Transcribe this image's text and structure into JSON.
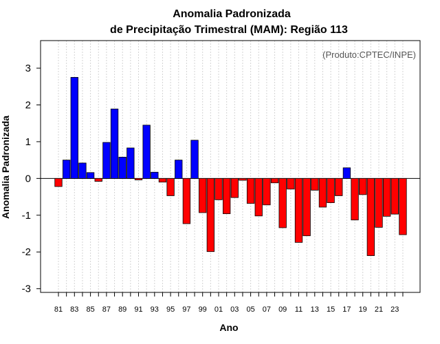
{
  "chart_data": {
    "type": "bar",
    "title": "Anomalia Padronizada",
    "subtitle": "de Precipitação Trimestral (MAM): Região 113",
    "xlabel": "Ano",
    "ylabel": "Anomalia Padronizada",
    "credit": "(Produto:CPTEC/INPE)",
    "ylim": [
      -3.1,
      3.75
    ],
    "yticks": [
      -3,
      -2,
      -1,
      0,
      1,
      2,
      3
    ],
    "grid": "vertical dotted",
    "positive_color": "#0000ff",
    "negative_color": "#ff0000",
    "categories": [
      "81",
      "82",
      "83",
      "84",
      "85",
      "86",
      "87",
      "88",
      "89",
      "90",
      "91",
      "92",
      "93",
      "94",
      "95",
      "96",
      "97",
      "98",
      "99",
      "00",
      "01",
      "02",
      "03",
      "04",
      "05",
      "06",
      "07",
      "08",
      "09",
      "10",
      "11",
      "12",
      "13",
      "14",
      "15",
      "16",
      "17",
      "18",
      "19",
      "20",
      "21",
      "22",
      "23",
      "24"
    ],
    "xtick_labels": [
      "81",
      "83",
      "85",
      "87",
      "89",
      "91",
      "93",
      "95",
      "97",
      "99",
      "01",
      "03",
      "05",
      "07",
      "09",
      "11",
      "13",
      "15",
      "17",
      "19",
      "21",
      "23"
    ],
    "values": [
      -0.22,
      0.5,
      2.75,
      0.42,
      0.16,
      -0.08,
      0.98,
      1.89,
      0.58,
      0.83,
      -0.04,
      1.45,
      0.17,
      -0.1,
      -0.47,
      0.5,
      -1.23,
      1.04,
      -0.93,
      -1.99,
      -0.58,
      -0.96,
      -0.52,
      -0.05,
      -0.68,
      -1.02,
      -0.72,
      -0.12,
      -1.34,
      -0.29,
      -1.74,
      -1.56,
      -0.32,
      -0.78,
      -0.66,
      -0.47,
      0.29,
      -1.13,
      -0.44,
      -2.1,
      -1.33,
      -1.03,
      -0.97,
      -1.53
    ]
  }
}
